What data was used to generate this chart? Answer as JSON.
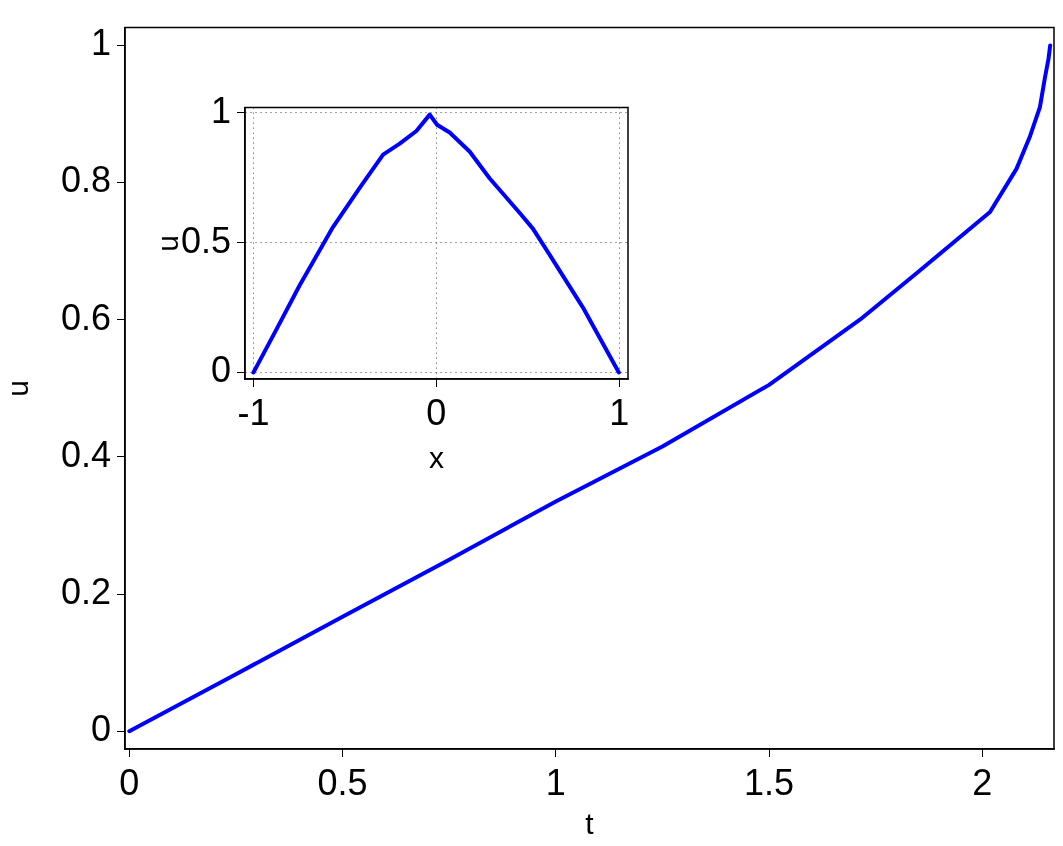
{
  "chart_data": [
    {
      "type": "line",
      "xlabel": "t",
      "ylabel": "u",
      "xlim": [
        -0.01,
        2.168
      ],
      "ylim": [
        -0.026,
        1.026
      ],
      "xticks": [
        0,
        0.5,
        1,
        1.5,
        2
      ],
      "yticks": [
        0,
        0.2,
        0.4,
        0.6,
        0.8,
        1
      ],
      "grid": false,
      "marker": "none",
      "line_style": "solid",
      "x": [
        0,
        0.25,
        0.5,
        0.75,
        1,
        1.25,
        1.5,
        1.713,
        1.85,
        2.018,
        2.08,
        2.112,
        2.135,
        2.147,
        2.155,
        2.159
      ],
      "series": [
        {
          "color": "#0000ff",
          "values": [
            0,
            0.083,
            0.167,
            0.25,
            0.335,
            0.415,
            0.505,
            0.6,
            0.67,
            0.757,
            0.82,
            0.868,
            0.91,
            0.954,
            0.98,
            1.0
          ]
        }
      ]
    },
    {
      "type": "line",
      "xlabel": "x",
      "ylabel": "u",
      "xlim": [
        -1.046,
        1.048
      ],
      "ylim": [
        -0.025,
        1.02
      ],
      "xticks": [
        -1,
        0,
        1
      ],
      "yticks": [
        0,
        0.5,
        1
      ],
      "grid": true,
      "marker": "none",
      "line_style": "solid",
      "x": [
        -1,
        -0.874,
        -0.747,
        -0.565,
        -0.419,
        -0.291,
        -0.2,
        -0.109,
        -0.036,
        0.004,
        0.073,
        0.182,
        0.291,
        0.455,
        0.528,
        0.638,
        0.801,
        0.998
      ],
      "series": [
        {
          "color": "#0000ff",
          "values": [
            0,
            0.166,
            0.336,
            0.56,
            0.711,
            0.839,
            0.881,
            0.93,
            0.993,
            0.954,
            0.924,
            0.851,
            0.748,
            0.615,
            0.554,
            0.433,
            0.251,
            0
          ]
        }
      ]
    }
  ]
}
